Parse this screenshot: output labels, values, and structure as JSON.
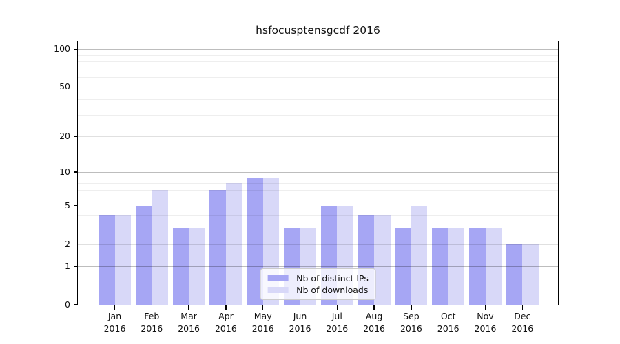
{
  "chart_data": {
    "type": "bar",
    "title": "hsfocusptensgcdf 2016",
    "year": "2016",
    "categories": [
      "Jan",
      "Feb",
      "Mar",
      "Apr",
      "May",
      "Jun",
      "Jul",
      "Aug",
      "Sep",
      "Oct",
      "Nov",
      "Dec"
    ],
    "series": [
      {
        "name": "Nb of distinct IPs",
        "color": "#a6a6f4",
        "values": [
          4,
          5,
          3,
          7,
          9,
          3,
          5,
          4,
          3,
          3,
          3,
          2
        ]
      },
      {
        "name": "Nb of downloads",
        "color": "#d8d8f8",
        "values": [
          4,
          7,
          3,
          8,
          9,
          3,
          5,
          4,
          5,
          3,
          3,
          2
        ]
      }
    ],
    "xlabel": "",
    "ylabel": "",
    "y_axis": {
      "scale": "log1p",
      "ticks": [
        0,
        1,
        2,
        5,
        10,
        20,
        50,
        100
      ],
      "minor_gridlines": [
        3,
        4,
        6,
        7,
        8,
        9,
        30,
        40,
        60,
        70,
        80,
        90
      ],
      "ylim": [
        0,
        115
      ]
    },
    "grid": true,
    "legend_position": "lower center"
  }
}
